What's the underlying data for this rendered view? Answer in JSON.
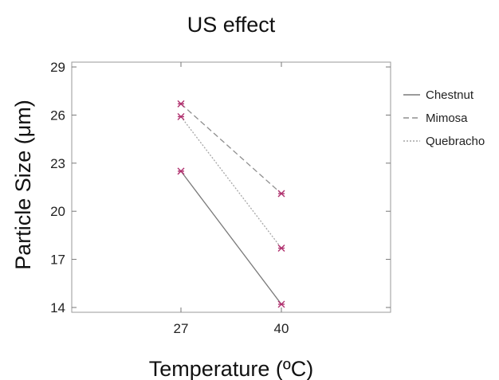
{
  "chart_data": {
    "type": "line",
    "title": "US effect",
    "xlabel": "Temperature (ºC)",
    "ylabel": "Particle Size (μm)",
    "x": [
      27,
      40
    ],
    "xticks": [
      "27",
      "40"
    ],
    "yticks": [
      14,
      17,
      20,
      23,
      26,
      29
    ],
    "ylim": [
      13.7,
      29.3
    ],
    "grid": false,
    "legend_position": "top-right",
    "series": [
      {
        "name": "Chestnut",
        "values": [
          22.5,
          14.2
        ],
        "color": "#7a7a7a",
        "dash": "solid"
      },
      {
        "name": "Mimosa",
        "values": [
          26.7,
          21.1
        ],
        "color": "#8f8f8f",
        "dash": "dashed"
      },
      {
        "name": "Quebracho",
        "values": [
          25.9,
          17.7
        ],
        "color": "#a6a6a6",
        "dash": "dotted"
      }
    ],
    "marker_color": "#b0306e"
  }
}
